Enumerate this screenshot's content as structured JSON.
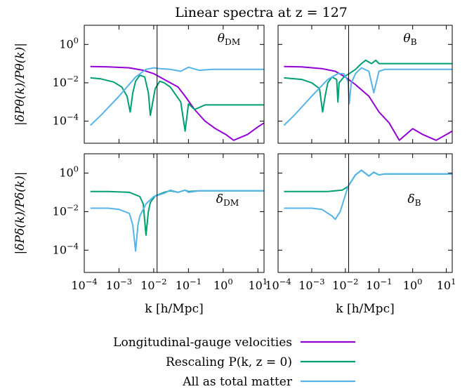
{
  "colors": {
    "longitudinal": "#9400d3",
    "rescaling": "#009e73",
    "total_matter": "#56b4e9",
    "axis": "#000000",
    "background": "#ffffff"
  },
  "chart_data": {
    "type": "line",
    "title": "Linear spectra at z = 127",
    "xscale": "log",
    "yscale": "log",
    "xlim": [
      0.0001,
      15
    ],
    "x_ticks": [
      "10^-4",
      "10^-3",
      "10^-2",
      "10^-1",
      "10^0",
      "10^1"
    ],
    "xlabel": "k [h/Mpc]",
    "grid": false,
    "legend_position": "bottom-center",
    "legend": [
      {
        "key": "longitudinal",
        "label": "Longitudinal-gauge velocities"
      },
      {
        "key": "rescaling",
        "label": "Rescaling P(k, z = 0)"
      },
      {
        "key": "total_matter",
        "label": "All as total matter"
      }
    ],
    "rows": [
      {
        "ylabel": "|δPθ(k)/Pθ(k)|",
        "ylim": [
          7e-06,
          10
        ],
        "y_ticks": [
          "10^0",
          "10^-2",
          "10^-4"
        ]
      },
      {
        "ylabel": "|δPδ(k)/Pδ(k)|",
        "ylim": [
          7e-06,
          10
        ],
        "y_ticks": [
          "10^0",
          "10^-2",
          "10^-4"
        ]
      }
    ],
    "panels": [
      {
        "label": "θDM",
        "vline_k": 0.0125,
        "series": [
          {
            "key": "longitudinal",
            "x": [
              0.00015,
              0.0005,
              0.002,
              0.005,
              0.01,
              0.02,
              0.05,
              0.08,
              0.15,
              0.3,
              0.6,
              1.2,
              2,
              5,
              10,
              15
            ],
            "y": [
              0.07,
              0.068,
              0.06,
              0.045,
              0.03,
              0.015,
              0.006,
              0.002,
              0.0004,
              0.0001,
              4e-05,
              2e-05,
              1e-05,
              2e-05,
              5e-05,
              8e-05
            ]
          },
          {
            "key": "rescaling",
            "x": [
              0.00015,
              0.0003,
              0.0007,
              0.0012,
              0.0017,
              0.0021,
              0.0025,
              0.003,
              0.004,
              0.0055,
              0.007,
              0.008,
              0.011,
              0.015,
              0.02,
              0.03,
              0.06,
              0.08,
              0.1,
              0.15,
              0.3,
              1,
              3,
              10,
              15
            ],
            "y": [
              0.018,
              0.016,
              0.011,
              0.006,
              0.002,
              0.0003,
              0.003,
              0.012,
              0.025,
              0.02,
              0.003,
              0.0002,
              0.005,
              0.012,
              0.01,
              0.006,
              0.001,
              3e-05,
              0.0008,
              0.0004,
              0.0007,
              0.0007,
              0.0007,
              0.0007,
              0.0007
            ]
          },
          {
            "key": "total_matter",
            "x": [
              0.00015,
              0.0003,
              0.001,
              0.003,
              0.006,
              0.01,
              0.015,
              0.03,
              0.06,
              0.1,
              0.2,
              0.5,
              1,
              5,
              15
            ],
            "y": [
              6e-05,
              0.0002,
              0.002,
              0.02,
              0.05,
              0.06,
              0.055,
              0.05,
              0.04,
              0.065,
              0.045,
              0.05,
              0.05,
              0.05,
              0.05
            ]
          }
        ]
      },
      {
        "label": "θB",
        "vline_k": 0.0125,
        "series": [
          {
            "key": "longitudinal",
            "x": [
              0.00015,
              0.0005,
              0.002,
              0.005,
              0.01,
              0.02,
              0.05,
              0.1,
              0.2,
              0.4,
              1,
              2,
              5,
              10,
              15
            ],
            "y": [
              0.07,
              0.068,
              0.055,
              0.04,
              0.02,
              0.008,
              0.002,
              0.0003,
              8e-05,
              1e-05,
              4e-05,
              2e-05,
              1e-05,
              2e-05,
              3e-05
            ]
          },
          {
            "key": "rescaling",
            "x": [
              0.00015,
              0.0005,
              0.001,
              0.0017,
              0.0021,
              0.0025,
              0.003,
              0.004,
              0.0055,
              0.006,
              0.0065,
              0.009,
              0.013,
              0.02,
              0.03,
              0.04,
              0.06,
              0.08,
              0.1,
              0.15,
              0.3,
              1,
              3,
              15
            ],
            "y": [
              0.018,
              0.015,
              0.01,
              0.005,
              0.0003,
              0.002,
              0.01,
              0.02,
              0.015,
              0.001,
              0.01,
              0.02,
              0.03,
              0.05,
              0.1,
              0.15,
              0.1,
              0.15,
              0.1,
              0.1,
              0.1,
              0.1,
              0.1,
              0.1
            ]
          },
          {
            "key": "total_matter",
            "x": [
              0.00015,
              0.0003,
              0.001,
              0.003,
              0.006,
              0.009,
              0.012,
              0.013,
              0.015,
              0.02,
              0.03,
              0.05,
              0.07,
              0.1,
              0.15,
              0.3,
              1,
              15
            ],
            "y": [
              6e-05,
              0.0002,
              0.002,
              0.015,
              0.03,
              0.03,
              0.012,
              0.0008,
              0.01,
              0.03,
              0.06,
              0.04,
              0.003,
              0.04,
              0.05,
              0.05,
              0.05,
              0.05
            ]
          }
        ]
      },
      {
        "label": "δDM",
        "vline_k": 0.0125,
        "series": [
          {
            "key": "rescaling",
            "x": [
              0.00015,
              0.0005,
              0.002,
              0.004,
              0.005,
              0.006,
              0.007,
              0.008,
              0.011,
              0.02,
              0.03,
              0.05,
              0.08,
              0.1,
              0.2,
              1,
              15
            ],
            "y": [
              0.11,
              0.11,
              0.1,
              0.06,
              0.025,
              0.0006,
              0.01,
              0.03,
              0.065,
              0.1,
              0.12,
              0.1,
              0.13,
              0.11,
              0.12,
              0.12,
              0.12
            ]
          },
          {
            "key": "total_matter",
            "x": [
              0.00015,
              0.0005,
              0.001,
              0.002,
              0.0025,
              0.003,
              0.0035,
              0.004,
              0.006,
              0.01,
              0.02,
              0.03,
              0.05,
              0.08,
              0.1,
              0.2,
              1,
              15
            ],
            "y": [
              0.015,
              0.015,
              0.013,
              0.008,
              0.002,
              9e-05,
              0.002,
              0.006,
              0.025,
              0.06,
              0.09,
              0.13,
              0.1,
              0.13,
              0.1,
              0.12,
              0.12,
              0.12
            ]
          }
        ]
      },
      {
        "label": "δB",
        "vline_k": 0.0125,
        "series": [
          {
            "key": "rescaling",
            "x": [
              0.00015,
              0.001,
              0.003,
              0.005,
              0.008,
              0.012,
              0.02,
              0.03,
              0.05,
              0.07,
              0.1,
              0.15,
              0.3,
              1,
              15
            ],
            "y": [
              0.11,
              0.11,
              0.11,
              0.12,
              0.13,
              0.2,
              0.8,
              1.4,
              0.7,
              1.1,
              0.8,
              0.9,
              0.9,
              0.9,
              0.9
            ]
          },
          {
            "key": "total_matter",
            "x": [
              0.00015,
              0.001,
              0.002,
              0.004,
              0.005,
              0.007,
              0.012,
              0.02,
              0.03,
              0.05,
              0.07,
              0.1,
              0.15,
              0.3,
              1,
              15
            ],
            "y": [
              0.015,
              0.015,
              0.013,
              0.006,
              0.004,
              0.01,
              0.2,
              0.8,
              1.4,
              0.7,
              1.1,
              0.8,
              0.9,
              0.9,
              0.9,
              0.9
            ]
          }
        ]
      }
    ]
  }
}
